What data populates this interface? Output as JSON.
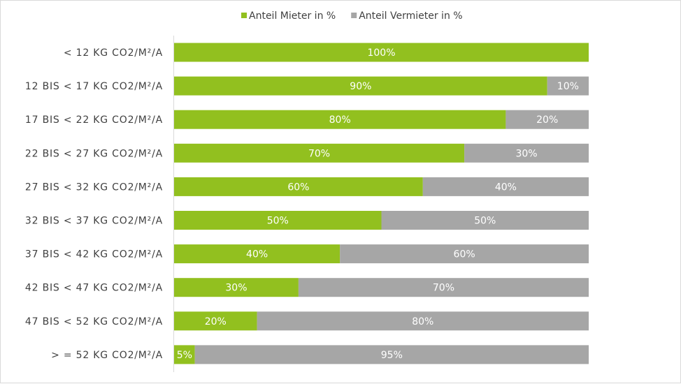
{
  "chart_data": {
    "type": "bar",
    "orientation": "horizontal",
    "stacked": "percent",
    "categories": [
      "< 12 KG CO2/M²/A",
      "12 BIS < 17 KG CO2/M²/A",
      "17 BIS < 22 KG CO2/M²/A",
      "22 BIS < 27 KG CO2/M²/A",
      "27 BIS < 32 KG CO2/M²/A",
      "32 BIS < 37 KG CO2/M²/A",
      "37 BIS < 42 KG CO2/M²/A",
      "42 BIS < 47 KG CO2/M²/A",
      "47 BIS < 52 KG CO2/M²/A",
      "> = 52 KG CO2/M²/A"
    ],
    "series": [
      {
        "name": "Anteil Mieter in %",
        "color": "#92c01f",
        "values": [
          100,
          90,
          80,
          70,
          60,
          50,
          40,
          30,
          20,
          5
        ],
        "labels": [
          "100%",
          "90%",
          "80%",
          "70%",
          "60%",
          "50%",
          "40%",
          "30%",
          "20%",
          "5%"
        ]
      },
      {
        "name": "Anteil Vermieter in %",
        "color": "#a6a6a6",
        "values": [
          0,
          10,
          20,
          30,
          40,
          50,
          60,
          70,
          80,
          95
        ],
        "labels": [
          "",
          "10%",
          "20%",
          "30%",
          "40%",
          "50%",
          "60%",
          "70%",
          "80%",
          "95%"
        ]
      }
    ],
    "xlim": [
      0,
      100
    ],
    "grid": false,
    "legend": "top-center"
  }
}
